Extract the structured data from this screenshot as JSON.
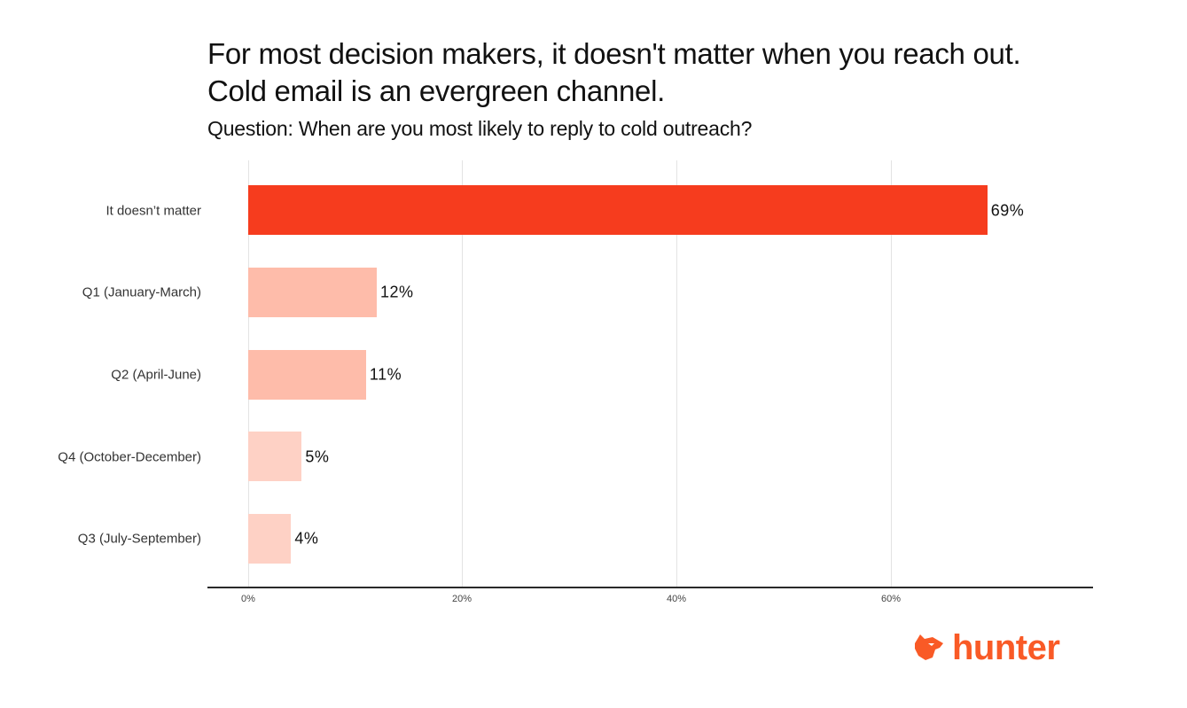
{
  "header": {
    "title_line1": "For most decision makers, it doesn't matter when you reach out.",
    "title_line2": "Cold email is an evergreen channel.",
    "subtitle": "Question: When are you most likely to reply to cold outreach?"
  },
  "colors": {
    "highlight": "#f63c1e",
    "medium": "#febcaa",
    "light": "#fed1c5",
    "brand": "#f95a26"
  },
  "axis": {
    "ticks": [
      "0%",
      "20%",
      "40%",
      "60%"
    ]
  },
  "bars": [
    {
      "label": "It doesn’t matter",
      "value": 69,
      "value_label": "69%"
    },
    {
      "label": "Q1 (January-March)",
      "value": 12,
      "value_label": "12%"
    },
    {
      "label": "Q2 (April-June)",
      "value": 11,
      "value_label": "11%"
    },
    {
      "label": "Q4 (October-December)",
      "value": 5,
      "value_label": "5%"
    },
    {
      "label": "Q3 (July-September)",
      "value": 4,
      "value_label": "4%"
    }
  ],
  "logo": {
    "text": "hunter",
    "icon": "fox-head-icon"
  },
  "chart_data": {
    "type": "bar",
    "orientation": "horizontal",
    "title": "For most decision makers, it doesn't matter when you reach out. Cold email is an evergreen channel.",
    "subtitle": "Question: When are you most likely to reply to cold outreach?",
    "categories": [
      "It doesn’t matter",
      "Q1 (January-March)",
      "Q2 (April-June)",
      "Q4 (October-December)",
      "Q3 (July-September)"
    ],
    "values": [
      69,
      12,
      11,
      5,
      4
    ],
    "data_labels": [
      "69%",
      "12%",
      "11%",
      "5%",
      "4%"
    ],
    "xlabel": "",
    "ylabel": "",
    "xlim": [
      0,
      79
    ],
    "x_ticks": [
      "0%",
      "20%",
      "40%",
      "60%"
    ],
    "grid": "vertical",
    "legend": "none",
    "unit": "%"
  }
}
